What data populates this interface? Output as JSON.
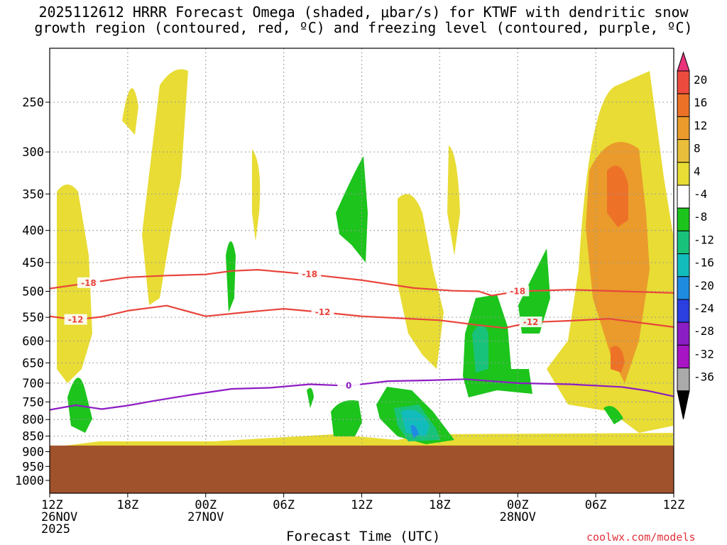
{
  "title": {
    "line1": "2025112612 HRRR Forecast Omega (shaded, μbar/s) for KTWF with dendritic snow",
    "line2": "growth region (contoured, red, ºC) and freezing level (contoured, purple, ºC)"
  },
  "xlabel": "Forecast Time (UTC)",
  "credit": "coolwx.com/models",
  "colors": {
    "terrain": "#a0522d",
    "dgz_contour": "#e8453c",
    "freezing_contour": "#8e1cc4",
    "grid": "#999999"
  },
  "chart_data": {
    "type": "heatmap",
    "title": "2025112612 HRRR Forecast Omega (shaded, μbar/s) for KTWF with dendritic snow growth region (contoured, red, ºC) and freezing level (contoured, purple, ºC)",
    "xlabel": "Forecast Time (UTC)",
    "ylabel": "",
    "y_scale": "log",
    "y_reversed": true,
    "grid": true,
    "x_hours_range": [
      0,
      48
    ],
    "x_ticks": [
      {
        "h": 0,
        "labels": [
          "12Z",
          "26NOV",
          "2025"
        ]
      },
      {
        "h": 6,
        "labels": [
          "18Z"
        ]
      },
      {
        "h": 12,
        "labels": [
          "00Z",
          "27NOV"
        ]
      },
      {
        "h": 18,
        "labels": [
          "06Z"
        ]
      },
      {
        "h": 24,
        "labels": [
          "12Z"
        ]
      },
      {
        "h": 30,
        "labels": [
          "18Z"
        ]
      },
      {
        "h": 36,
        "labels": [
          "00Z",
          "28NOV"
        ]
      },
      {
        "h": 42,
        "labels": [
          "06Z"
        ]
      },
      {
        "h": 48,
        "labels": [
          "12Z"
        ]
      }
    ],
    "y_ticks": [
      "250",
      "300",
      "350",
      "400",
      "450",
      "500",
      "550",
      "600",
      "650",
      "700",
      "750",
      "800",
      "850",
      "900",
      "950",
      "1000"
    ],
    "colorbar": {
      "labels": [
        "20",
        "16",
        "12",
        "8",
        "4",
        "-4",
        "-8",
        "-12",
        "-16",
        "-20",
        "-24",
        "-28",
        "-32",
        "-36"
      ],
      "colors": [
        "#e8337a",
        "#ec4b3d",
        "#ed7227",
        "#ea9b2b",
        "#e9be3a",
        "#e8dc35",
        "#ffffff",
        "#1cc41c",
        "#19c27a",
        "#13bcbc",
        "#1e8be0",
        "#2b3ee0",
        "#8a1dc4",
        "#a614c4",
        "#aaaaaa",
        "#000000"
      ]
    },
    "terrain_top_hpa": 880,
    "contours": [
      {
        "label": "-18",
        "color": "#e8453c",
        "points": [
          [
            0,
            495
          ],
          [
            3,
            485
          ],
          [
            6,
            475
          ],
          [
            9,
            472
          ],
          [
            12,
            470
          ],
          [
            14,
            464
          ],
          [
            16,
            462
          ],
          [
            20,
            470
          ],
          [
            24,
            480
          ],
          [
            28,
            494
          ],
          [
            31,
            499
          ],
          [
            33,
            500
          ],
          [
            34,
            508
          ],
          [
            36,
            500
          ],
          [
            40,
            497
          ],
          [
            44,
            500
          ],
          [
            48,
            503
          ]
        ]
      },
      {
        "label": "-12",
        "color": "#e8453c",
        "points": [
          [
            0,
            548
          ],
          [
            2,
            555
          ],
          [
            4,
            549
          ],
          [
            6,
            537
          ],
          [
            9,
            527
          ],
          [
            12,
            548
          ],
          [
            15,
            540
          ],
          [
            18,
            533
          ],
          [
            21,
            540
          ],
          [
            24,
            548
          ],
          [
            27,
            552
          ],
          [
            30,
            556
          ],
          [
            33,
            566
          ],
          [
            35,
            572
          ],
          [
            37,
            560
          ],
          [
            40,
            557
          ],
          [
            43,
            553
          ],
          [
            46,
            563
          ],
          [
            48,
            570
          ]
        ]
      },
      {
        "label": "0",
        "color": "#8e1cc4",
        "points": [
          [
            0,
            772
          ],
          [
            2,
            759
          ],
          [
            4,
            770
          ],
          [
            6,
            760
          ],
          [
            8,
            747
          ],
          [
            11,
            730
          ],
          [
            14,
            715
          ],
          [
            17,
            712
          ],
          [
            20,
            703
          ],
          [
            23,
            707
          ],
          [
            26,
            695
          ],
          [
            29,
            693
          ],
          [
            32,
            690
          ],
          [
            36,
            700
          ],
          [
            40,
            703
          ],
          [
            44,
            710
          ],
          [
            46,
            720
          ],
          [
            48,
            735
          ]
        ]
      }
    ],
    "omega_regions": [
      {
        "sign": "positive",
        "min": 4,
        "max": 8,
        "desc": "weak rising motion, upper levels near 26NOV 12Z-18Z"
      },
      {
        "sign": "positive",
        "min": 8,
        "max": 16,
        "desc": "strongest rising motion, 28NOV 06Z-12Z, 300-650 hPa"
      },
      {
        "sign": "negative",
        "min": -16,
        "max": -8,
        "desc": "sinking motion near 27NOV 15Z, 750-850 hPa"
      }
    ]
  }
}
